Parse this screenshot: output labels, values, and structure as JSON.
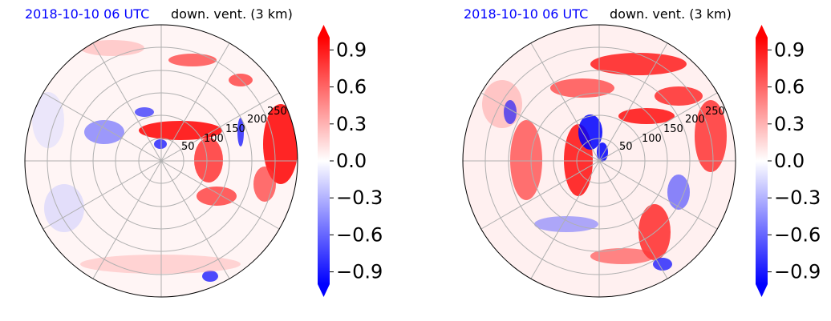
{
  "figure": {
    "panels": [
      {
        "title_left": "2018-10-10 06 UTC",
        "title_right": "down. vent. (3 km)"
      },
      {
        "title_left": "2018-10-10 06 UTC",
        "title_right": "down. vent. (3 km)"
      }
    ]
  },
  "chart_data": [
    {
      "type": "heatmap",
      "projection": "polar",
      "title_left": "2018-10-10 06 UTC",
      "title_right": "down. vent. (3 km)",
      "radial_ticks": [
        "50",
        "100",
        "150",
        "200",
        "250"
      ],
      "rmax": 300,
      "colorbar": {
        "ticks": [
          "−0.9",
          "−0.6",
          "−0.3",
          "0.0",
          "0.3",
          "0.6",
          "0.9"
        ],
        "tick_values": [
          -0.9,
          -0.6,
          -0.3,
          0.0,
          0.3,
          0.6,
          0.9
        ],
        "vmin": -1.0,
        "vmax": 1.0,
        "extend": "both",
        "colormap": "bwr"
      },
      "colors": {
        "negative": "#0000ff",
        "positive": "#ff0000",
        "neutral": "#ffffff",
        "title_left": "#0000ff"
      }
    },
    {
      "type": "heatmap",
      "projection": "polar",
      "title_left": "2018-10-10 06 UTC",
      "title_right": "down. vent. (3 km)",
      "radial_ticks": [
        "50",
        "100",
        "150",
        "200",
        "250"
      ],
      "rmax": 300,
      "colorbar": {
        "ticks": [
          "−0.9",
          "−0.6",
          "−0.3",
          "0.0",
          "0.3",
          "0.6",
          "0.9"
        ],
        "tick_values": [
          -0.9,
          -0.6,
          -0.3,
          0.0,
          0.3,
          0.6,
          0.9
        ],
        "vmin": -1.0,
        "vmax": 1.0,
        "extend": "both",
        "colormap": "bwr"
      },
      "colors": {
        "negative": "#0000ff",
        "positive": "#ff0000",
        "neutral": "#ffffff",
        "title_left": "#0000ff"
      }
    }
  ]
}
